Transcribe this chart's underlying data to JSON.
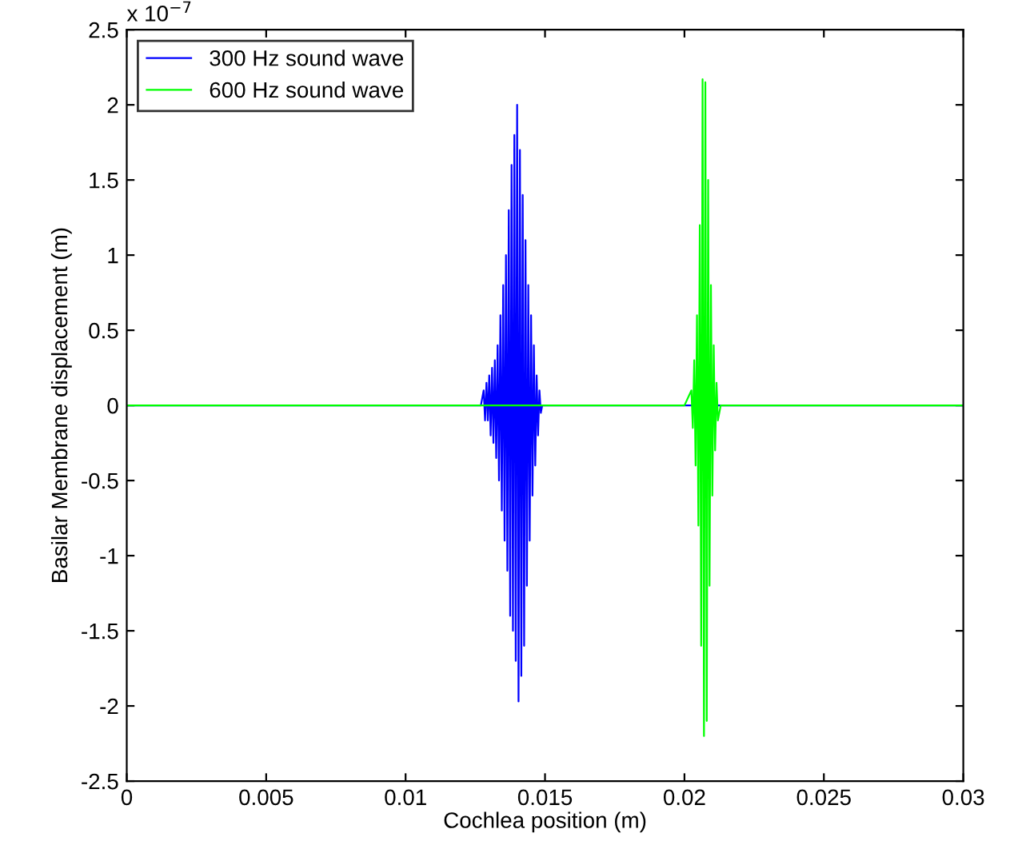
{
  "chart_data": {
    "type": "line",
    "xlabel": "Cochlea position (m)",
    "ylabel": "Basilar Membrane displacement (m)",
    "annotations": [
      "x 10$^{−7}$"
    ],
    "xlim": [
      0,
      0.03
    ],
    "xticks": [
      0,
      0.005,
      0.01,
      0.015,
      0.02,
      0.025,
      0.03
    ],
    "ylim": [
      -2.5,
      2.5
    ],
    "yticks": [
      -2.5,
      -2,
      -1.5,
      -1,
      -0.5,
      0,
      0.5,
      1,
      1.5,
      2,
      2.5
    ],
    "grid": false,
    "legend": "top left",
    "marker": "none",
    "line_style": "solid",
    "series": [
      {
        "name": "300 Hz sound wave",
        "color": "#0000ff",
        "x": [
          0,
          0.0127,
          0.0128,
          0.01285,
          0.0129,
          0.01295,
          0.013,
          0.01305,
          0.0131,
          0.01315,
          0.0132,
          0.01325,
          0.0133,
          0.01335,
          0.0134,
          0.01345,
          0.0135,
          0.01355,
          0.0136,
          0.01365,
          0.0137,
          0.01375,
          0.0138,
          0.01385,
          0.0139,
          0.01395,
          0.014,
          0.01405,
          0.0141,
          0.01415,
          0.0142,
          0.01425,
          0.0143,
          0.01435,
          0.0144,
          0.01445,
          0.0145,
          0.01455,
          0.0146,
          0.01465,
          0.0147,
          0.01475,
          0.0148,
          0.01485,
          0.0149,
          0.03
        ],
        "values": [
          0,
          0,
          0.1,
          -0.1,
          0.15,
          -0.1,
          0.2,
          -0.2,
          0.25,
          -0.25,
          0.3,
          -0.35,
          0.4,
          -0.5,
          0.6,
          -0.7,
          0.8,
          -0.9,
          1.0,
          -1.1,
          1.3,
          -1.4,
          1.6,
          -1.5,
          1.8,
          -1.7,
          2.0,
          -1.97,
          1.7,
          -1.8,
          1.4,
          -1.6,
          1.1,
          -1.2,
          0.8,
          -0.9,
          0.6,
          -0.6,
          0.4,
          -0.4,
          0.2,
          -0.2,
          0.1,
          -0.05,
          0,
          0
        ]
      },
      {
        "name": "600 Hz sound wave",
        "color": "#00ff00",
        "x": [
          0,
          0.02,
          0.02025,
          0.0203,
          0.02035,
          0.0204,
          0.02045,
          0.0205,
          0.02055,
          0.0206,
          0.02065,
          0.0207,
          0.02075,
          0.0208,
          0.02085,
          0.0209,
          0.02095,
          0.021,
          0.02105,
          0.0211,
          0.02115,
          0.0212,
          0.0213,
          0.03
        ],
        "values": [
          0,
          0,
          0.1,
          -0.15,
          0.3,
          -0.4,
          0.6,
          -0.8,
          1.2,
          -1.6,
          2.17,
          -2.2,
          2.15,
          -2.1,
          1.5,
          -1.2,
          0.8,
          -0.6,
          0.4,
          -0.3,
          0.15,
          -0.1,
          0,
          0
        ]
      }
    ]
  }
}
